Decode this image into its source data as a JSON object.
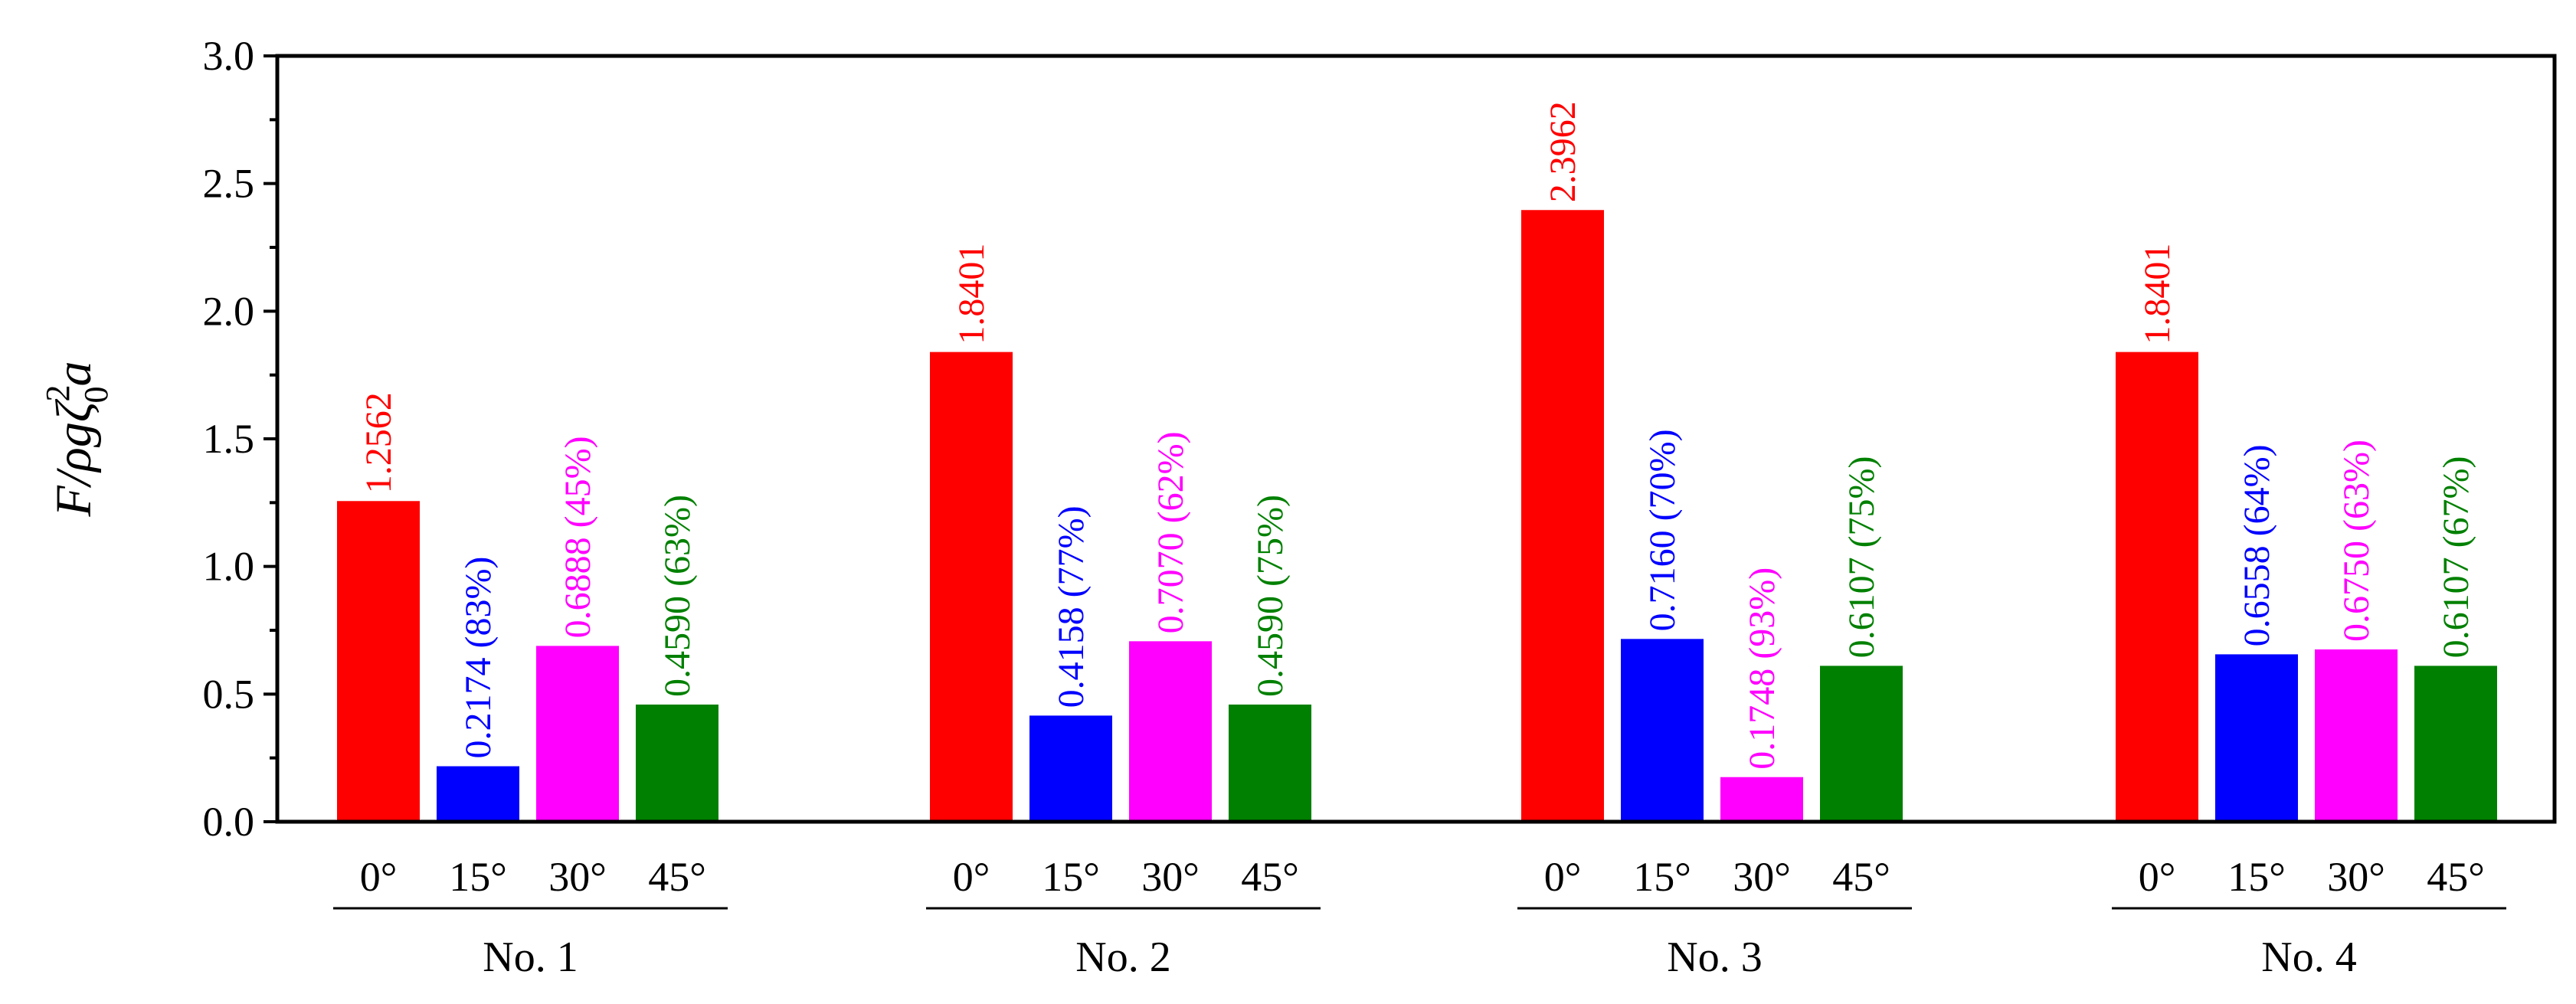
{
  "chart_data": {
    "type": "bar",
    "ylabel": {
      "main": "F/ρgζ",
      "sup": "2",
      "sub": "0",
      "tail": "a"
    },
    "ylim": [
      0,
      3.0
    ],
    "yticks": [
      "0.0",
      "0.5",
      "1.0",
      "1.5",
      "2.0",
      "2.5",
      "3.0"
    ],
    "grid": false,
    "legend": "none",
    "colors": {
      "0°": "#ff0000",
      "15°": "#0000ff",
      "30°": "#ff00ff",
      "45°": "#008000"
    },
    "groups": [
      {
        "name": "No. 1",
        "bars": [
          {
            "angle": "0°",
            "value": 1.2562,
            "label": "1.2562"
          },
          {
            "angle": "15°",
            "value": 0.2174,
            "label": "0.2174 (83%)"
          },
          {
            "angle": "30°",
            "value": 0.6888,
            "label": "0.6888 (45%)"
          },
          {
            "angle": "45°",
            "value": 0.459,
            "label": "0.4590 (63%)"
          }
        ]
      },
      {
        "name": "No. 2",
        "bars": [
          {
            "angle": "0°",
            "value": 1.8401,
            "label": "1.8401"
          },
          {
            "angle": "15°",
            "value": 0.4158,
            "label": "0.4158 (77%)"
          },
          {
            "angle": "30°",
            "value": 0.707,
            "label": "0.7070 (62%)"
          },
          {
            "angle": "45°",
            "value": 0.459,
            "label": "0.4590 (75%)"
          }
        ]
      },
      {
        "name": "No. 3",
        "bars": [
          {
            "angle": "0°",
            "value": 2.3962,
            "label": "2.3962"
          },
          {
            "angle": "15°",
            "value": 0.716,
            "label": "0.7160 (70%)"
          },
          {
            "angle": "30°",
            "value": 0.1748,
            "label": "0.1748 (93%)"
          },
          {
            "angle": "45°",
            "value": 0.6107,
            "label": "0.6107 (75%)"
          }
        ]
      },
      {
        "name": "No. 4",
        "bars": [
          {
            "angle": "0°",
            "value": 1.8401,
            "label": "1.8401"
          },
          {
            "angle": "15°",
            "value": 0.6558,
            "label": "0.6558 (64%)"
          },
          {
            "angle": "30°",
            "value": 0.675,
            "label": "0.6750 (63%)"
          },
          {
            "angle": "45°",
            "value": 0.6107,
            "label": "0.6107 (67%)"
          }
        ]
      }
    ]
  }
}
